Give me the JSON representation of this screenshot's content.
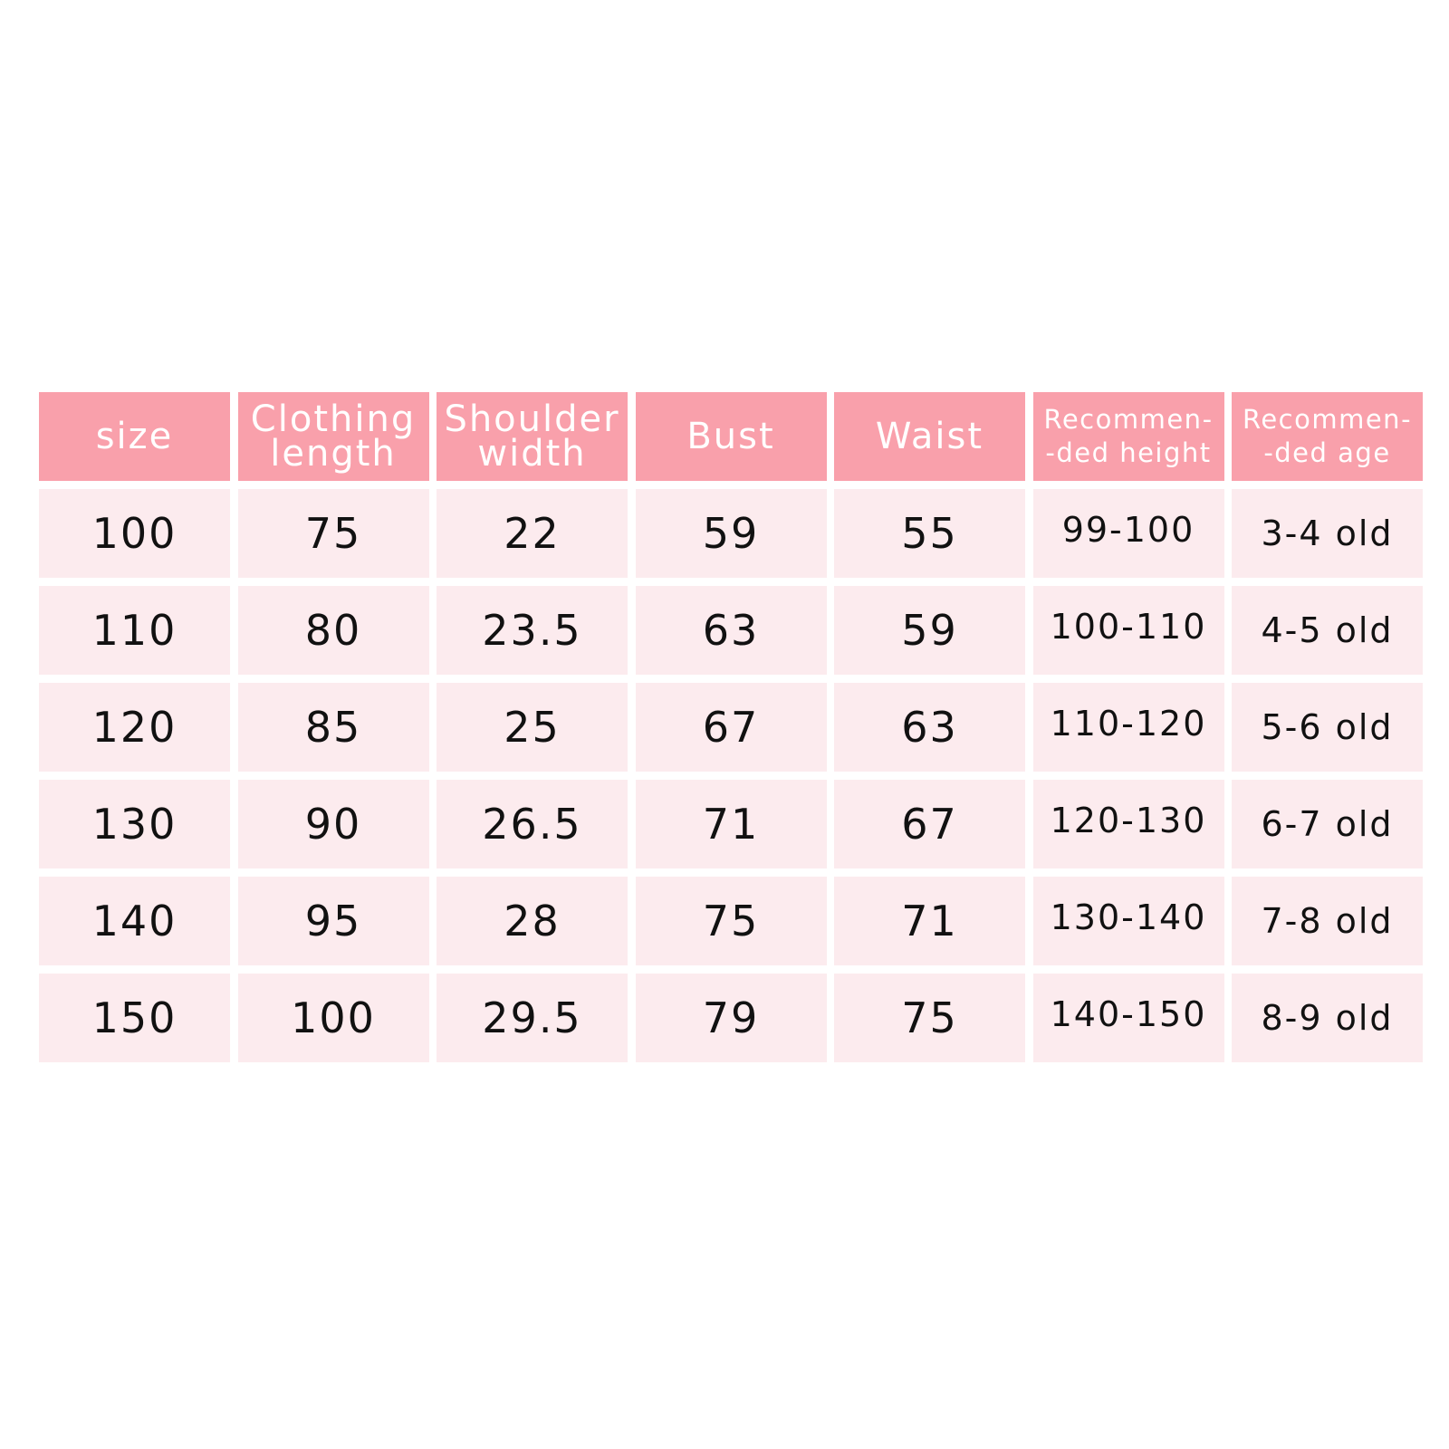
{
  "colors": {
    "header_bg": "#f9a0ab",
    "cell_bg": "#fcebee",
    "header_text": "#ffffff",
    "cell_text": "#111111"
  },
  "table": {
    "headers": [
      "size",
      "Clothing\nlength",
      "Shoulder\nwidth",
      "Bust",
      "Waist",
      "Recommen-\n-ded height",
      "Recommen-\n-ded age"
    ],
    "rows": [
      [
        "100",
        "75",
        "22",
        "59",
        "55",
        "99-100",
        "3-4 old"
      ],
      [
        "110",
        "80",
        "23.5",
        "63",
        "59",
        "100-110",
        "4-5 old"
      ],
      [
        "120",
        "85",
        "25",
        "67",
        "63",
        "110-120",
        "5-6 old"
      ],
      [
        "130",
        "90",
        "26.5",
        "71",
        "67",
        "120-130",
        "6-7 old"
      ],
      [
        "140",
        "95",
        "28",
        "75",
        "71",
        "130-140",
        "7-8 old"
      ],
      [
        "150",
        "100",
        "29.5",
        "79",
        "75",
        "140-150",
        "8-9 old"
      ]
    ]
  }
}
